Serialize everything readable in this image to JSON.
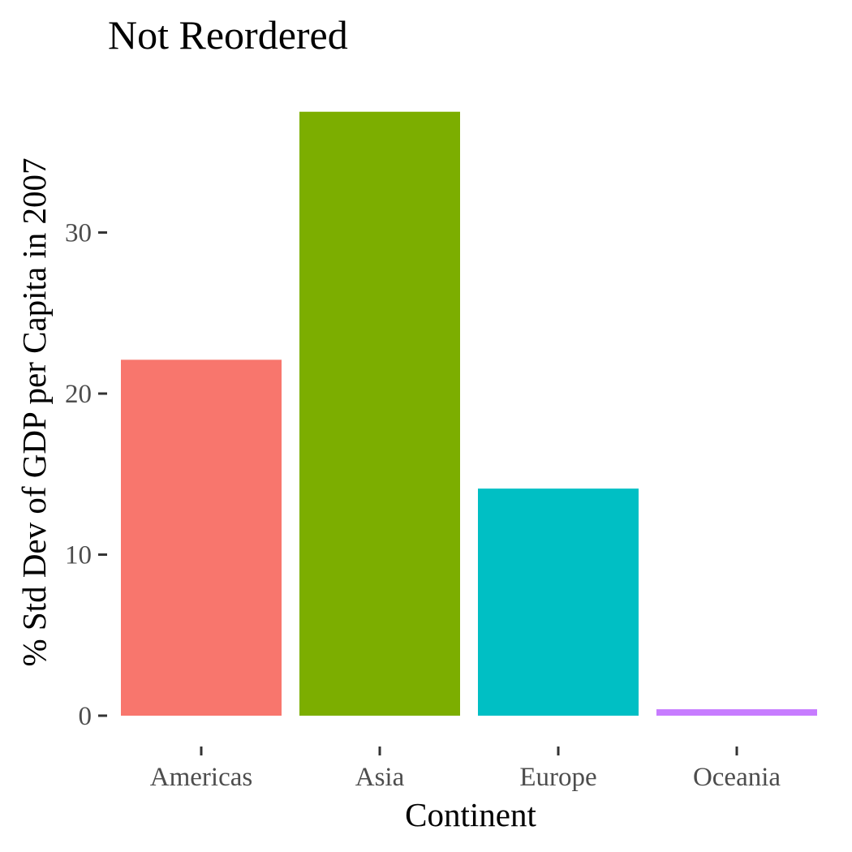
{
  "chart_data": {
    "type": "bar",
    "title": "Not Reordered",
    "xlabel": "Continent",
    "ylabel": "% Std Dev of GDP per Capita in 2007",
    "categories": [
      "Americas",
      "Asia",
      "Europe",
      "Oceania"
    ],
    "values": [
      22.1,
      37.5,
      14.1,
      0.4
    ],
    "colors": [
      "#F8766D",
      "#7CAE00",
      "#00BFC4",
      "#C77CFF"
    ],
    "ylim": [
      0,
      39.4
    ],
    "yticks": [
      0,
      10,
      20,
      30
    ],
    "grid": false,
    "legend": "none"
  }
}
